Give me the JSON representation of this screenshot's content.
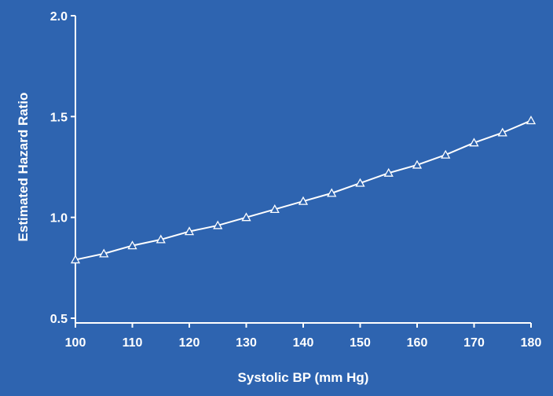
{
  "chart_data": {
    "type": "line",
    "title": "",
    "xlabel": "Systolic BP (mm Hg)",
    "ylabel": "Estimated Hazard Ratio",
    "xlim": [
      100,
      180
    ],
    "ylim": [
      0.5,
      2.0
    ],
    "xticks": [
      "100",
      "110",
      "120",
      "130",
      "140",
      "150",
      "160",
      "170",
      "180"
    ],
    "yticks": [
      "0.5",
      "1.0",
      "1.5",
      "2.0"
    ],
    "grid": false,
    "marker": "open-triangle",
    "series": [
      {
        "x": [
          100,
          105,
          110,
          115,
          120,
          125,
          130,
          135,
          140,
          145,
          150,
          155,
          160,
          165,
          170,
          175,
          180
        ],
        "y": [
          0.79,
          0.82,
          0.86,
          0.89,
          0.93,
          0.96,
          1.0,
          1.04,
          1.08,
          1.12,
          1.17,
          1.22,
          1.26,
          1.31,
          1.37,
          1.42,
          1.48
        ]
      }
    ],
    "colors": {
      "background": "#2e64b0",
      "foreground": "#ffffff"
    }
  }
}
